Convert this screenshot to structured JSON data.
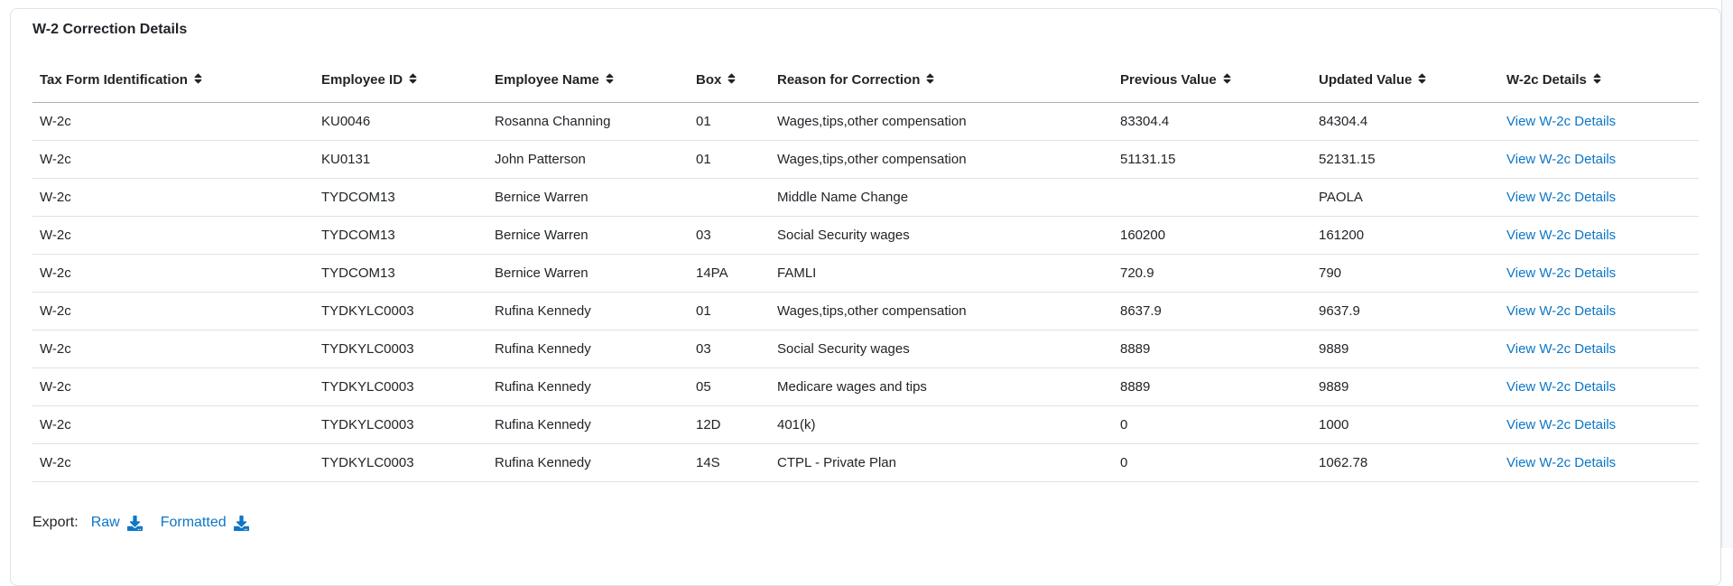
{
  "card": {
    "title": "W-2 Correction Details"
  },
  "table": {
    "columns": [
      {
        "id": "tax-form-identification",
        "label": "Tax Form Identification",
        "sortable": true
      },
      {
        "id": "employee-id",
        "label": "Employee ID",
        "sortable": true
      },
      {
        "id": "employee-name",
        "label": "Employee Name",
        "sortable": true
      },
      {
        "id": "box",
        "label": "Box",
        "sortable": true
      },
      {
        "id": "reason-for-correction",
        "label": "Reason for Correction",
        "sortable": true
      },
      {
        "id": "previous-value",
        "label": "Previous Value",
        "sortable": true
      },
      {
        "id": "updated-value",
        "label": "Updated Value",
        "sortable": true
      },
      {
        "id": "w2c-details",
        "label": "W-2c Details",
        "sortable": true
      }
    ],
    "rows": [
      {
        "tax_form": "W-2c",
        "employee_id": "KU0046",
        "employee_name": "Rosanna Channing",
        "box": "01",
        "reason": "Wages,tips,other compensation",
        "previous_value": "83304.4",
        "updated_value": "84304.4",
        "details_link": "View W-2c Details"
      },
      {
        "tax_form": "W-2c",
        "employee_id": "KU0131",
        "employee_name": "John Patterson",
        "box": "01",
        "reason": "Wages,tips,other compensation",
        "previous_value": "51131.15",
        "updated_value": "52131.15",
        "details_link": "View W-2c Details"
      },
      {
        "tax_form": "W-2c",
        "employee_id": "TYDCOM13",
        "employee_name": "Bernice Warren",
        "box": "",
        "reason": "Middle Name Change",
        "previous_value": "",
        "updated_value": "PAOLA",
        "details_link": "View W-2c Details"
      },
      {
        "tax_form": "W-2c",
        "employee_id": "TYDCOM13",
        "employee_name": "Bernice Warren",
        "box": "03",
        "reason": "Social Security wages",
        "previous_value": "160200",
        "updated_value": "161200",
        "details_link": "View W-2c Details"
      },
      {
        "tax_form": "W-2c",
        "employee_id": "TYDCOM13",
        "employee_name": "Bernice Warren",
        "box": "14PA",
        "reason": "FAMLI",
        "previous_value": "720.9",
        "updated_value": "790",
        "details_link": "View W-2c Details"
      },
      {
        "tax_form": "W-2c",
        "employee_id": "TYDKYLC0003",
        "employee_name": "Rufina Kennedy",
        "box": "01",
        "reason": "Wages,tips,other compensation",
        "previous_value": "8637.9",
        "updated_value": "9637.9",
        "details_link": "View W-2c Details"
      },
      {
        "tax_form": "W-2c",
        "employee_id": "TYDKYLC0003",
        "employee_name": "Rufina Kennedy",
        "box": "03",
        "reason": "Social Security wages",
        "previous_value": "8889",
        "updated_value": "9889",
        "details_link": "View W-2c Details"
      },
      {
        "tax_form": "W-2c",
        "employee_id": "TYDKYLC0003",
        "employee_name": "Rufina Kennedy",
        "box": "05",
        "reason": "Medicare wages and tips",
        "previous_value": "8889",
        "updated_value": "9889",
        "details_link": "View W-2c Details"
      },
      {
        "tax_form": "W-2c",
        "employee_id": "TYDKYLC0003",
        "employee_name": "Rufina Kennedy",
        "box": "12D",
        "reason": "401(k)",
        "previous_value": "0",
        "updated_value": "1000",
        "details_link": "View W-2c Details"
      },
      {
        "tax_form": "W-2c",
        "employee_id": "TYDKYLC0003",
        "employee_name": "Rufina Kennedy",
        "box": "14S",
        "reason": "CTPL - Private Plan",
        "previous_value": "0",
        "updated_value": "1062.78",
        "details_link": "View W-2c Details"
      }
    ]
  },
  "export": {
    "label": "Export:",
    "links": [
      {
        "id": "raw",
        "label": "Raw"
      },
      {
        "id": "formatted",
        "label": "Formatted"
      }
    ]
  },
  "colors": {
    "link": "#0d76c6",
    "text": "#212529",
    "row_border": "#dee2e6",
    "header_border": "#aab0b6",
    "card_border": "#dee2e6"
  }
}
